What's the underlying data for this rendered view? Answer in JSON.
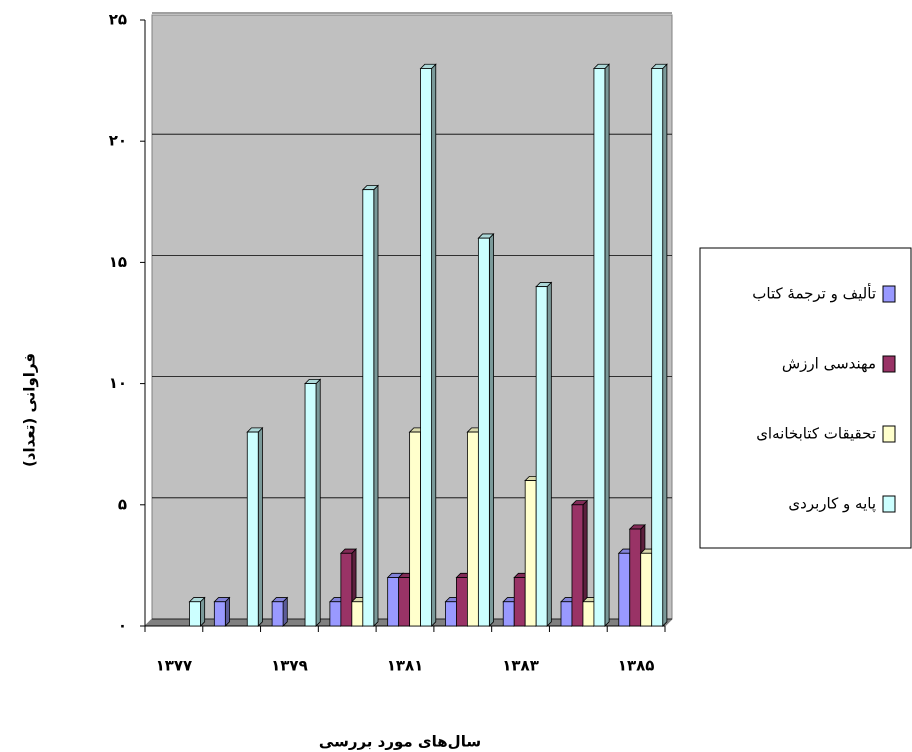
{
  "chart_data": {
    "type": "bar",
    "x_label": "سال‌های مورد بررسی",
    "y_label": "فراوانی (تعداد)",
    "categories": [
      "۱۳۷۷",
      null,
      "۱۳۷۹",
      null,
      "۱۳۸۱",
      null,
      "۱۳۸۳",
      null,
      "۱۳۸۵"
    ],
    "series": [
      {
        "name": "تألیف و ترجمهٔ کتاب",
        "color": "#9999ff",
        "values": [
          0,
          1,
          1,
          1,
          2,
          1,
          1,
          1,
          3
        ]
      },
      {
        "name": "مهندسی ارزش",
        "color": "#993366",
        "values": [
          0,
          0,
          0,
          3,
          2,
          2,
          2,
          5,
          4
        ]
      },
      {
        "name": "تحقیقات کتابخانه‌ای",
        "color": "#ffffcc",
        "values": [
          0,
          0,
          0,
          1,
          8,
          8,
          6,
          1,
          3
        ]
      },
      {
        "name": "پایه و کاربردی",
        "color": "#ccffff",
        "values": [
          1,
          8,
          10,
          18,
          23,
          16,
          14,
          23,
          23
        ]
      }
    ],
    "ylim": [
      0,
      25
    ],
    "yticks": [
      {
        "value": 0,
        "label": "۰"
      },
      {
        "value": 5,
        "label": "۵"
      },
      {
        "value": 10,
        "label": "۱۰"
      },
      {
        "value": 15,
        "label": "۱۵"
      },
      {
        "value": 20,
        "label": "۲۰"
      },
      {
        "value": 25,
        "label": "۲۵"
      }
    ],
    "grid": true,
    "legend": "right"
  }
}
